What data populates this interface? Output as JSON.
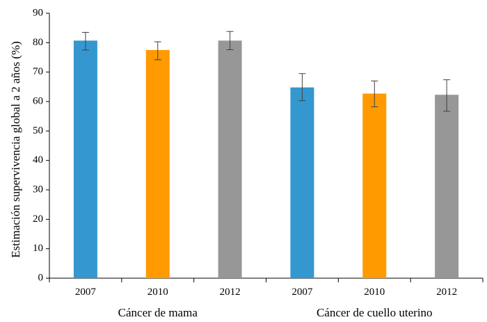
{
  "chart_data": {
    "type": "bar",
    "title": "",
    "ylabel": "Estimación supervivencia global a 2 años (%)",
    "xlabel": "",
    "ylim": [
      0,
      90
    ],
    "yticks": [
      0,
      10,
      20,
      30,
      40,
      50,
      60,
      70,
      80,
      90
    ],
    "grid": false,
    "groups": [
      {
        "name": "Cáncer de mama",
        "bars": [
          {
            "year": "2007",
            "value": 80.7,
            "err_low": 77.5,
            "err_high": 83.5
          },
          {
            "year": "2010",
            "value": 77.5,
            "err_low": 74.2,
            "err_high": 80.3
          },
          {
            "year": "2012",
            "value": 80.7,
            "err_low": 77.6,
            "err_high": 83.8
          }
        ]
      },
      {
        "name": "Cáncer de cuello uterino",
        "bars": [
          {
            "year": "2007",
            "value": 64.8,
            "err_low": 60.3,
            "err_high": 69.5
          },
          {
            "year": "2010",
            "value": 62.7,
            "err_low": 58.2,
            "err_high": 67.0
          },
          {
            "year": "2012",
            "value": 62.3,
            "err_low": 56.7,
            "err_high": 67.4
          }
        ]
      }
    ],
    "colors": {
      "2007": "#3597cf",
      "2010": "#ff9a00",
      "2012": "#979797"
    }
  }
}
